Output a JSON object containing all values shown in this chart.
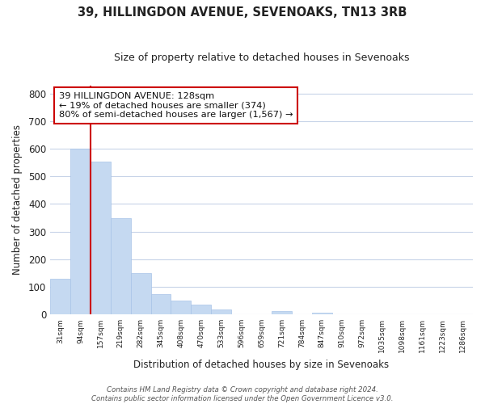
{
  "title": "39, HILLINGDON AVENUE, SEVENOAKS, TN13 3RB",
  "subtitle": "Size of property relative to detached houses in Sevenoaks",
  "xlabel": "Distribution of detached houses by size in Sevenoaks",
  "ylabel": "Number of detached properties",
  "categories": [
    "31sqm",
    "94sqm",
    "157sqm",
    "219sqm",
    "282sqm",
    "345sqm",
    "408sqm",
    "470sqm",
    "533sqm",
    "596sqm",
    "659sqm",
    "721sqm",
    "784sqm",
    "847sqm",
    "910sqm",
    "972sqm",
    "1035sqm",
    "1098sqm",
    "1161sqm",
    "1223sqm",
    "1286sqm"
  ],
  "values": [
    128,
    600,
    555,
    348,
    150,
    75,
    50,
    35,
    18,
    0,
    0,
    12,
    0,
    5,
    0,
    0,
    0,
    0,
    0,
    0,
    0
  ],
  "bar_color": "#c5d9f1",
  "bar_edge_color": "#a8c4e8",
  "vline_x": 1.5,
  "vline_color": "#cc0000",
  "ylim": [
    0,
    830
  ],
  "yticks": [
    0,
    100,
    200,
    300,
    400,
    500,
    600,
    700,
    800
  ],
  "annotation_text": "39 HILLINGDON AVENUE: 128sqm\n← 19% of detached houses are smaller (374)\n80% of semi-detached houses are larger (1,567) →",
  "annotation_box_color": "#ffffff",
  "annotation_box_edgecolor": "#cc0000",
  "footnote": "Contains HM Land Registry data © Crown copyright and database right 2024.\nContains public sector information licensed under the Open Government Licence v3.0.",
  "background_color": "#ffffff",
  "grid_color": "#c8d4e8"
}
